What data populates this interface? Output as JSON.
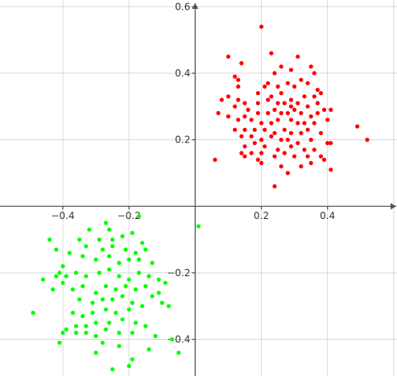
{
  "chart_data": {
    "type": "scatter",
    "title": "",
    "xlabel": "",
    "ylabel": "",
    "xlim": [
      -0.59,
      0.61
    ],
    "ylim": [
      -0.51,
      0.62
    ],
    "grid": true,
    "x_ticks": [
      -0.4,
      -0.2,
      0.2,
      0.4
    ],
    "x_tick_labels": [
      "−0.4",
      "−0.2",
      "0.2",
      "0.4"
    ],
    "y_ticks": [
      0.6,
      0.4,
      0.2,
      -0.2,
      -0.4
    ],
    "y_tick_labels": [
      "0.6",
      "0.4",
      "0.2",
      "−0.2",
      "−0.4"
    ],
    "series": [
      {
        "color": "#ff0000",
        "points": [
          [
            0.2,
            0.54
          ],
          [
            0.1,
            0.45
          ],
          [
            0.14,
            0.43
          ],
          [
            0.23,
            0.46
          ],
          [
            0.31,
            0.45
          ],
          [
            0.35,
            0.42
          ],
          [
            0.26,
            0.42
          ],
          [
            0.24,
            0.4
          ],
          [
            0.29,
            0.41
          ],
          [
            0.32,
            0.38
          ],
          [
            0.36,
            0.4
          ],
          [
            0.12,
            0.39
          ],
          [
            0.13,
            0.38
          ],
          [
            0.22,
            0.37
          ],
          [
            0.25,
            0.36
          ],
          [
            0.28,
            0.37
          ],
          [
            0.3,
            0.36
          ],
          [
            0.34,
            0.37
          ],
          [
            0.37,
            0.35
          ],
          [
            0.21,
            0.36
          ],
          [
            0.13,
            0.36
          ],
          [
            0.19,
            0.34
          ],
          [
            0.23,
            0.33
          ],
          [
            0.26,
            0.34
          ],
          [
            0.27,
            0.31
          ],
          [
            0.29,
            0.32
          ],
          [
            0.33,
            0.33
          ],
          [
            0.36,
            0.33
          ],
          [
            0.38,
            0.34
          ],
          [
            0.1,
            0.33
          ],
          [
            0.13,
            0.32
          ],
          [
            0.15,
            0.31
          ],
          [
            0.19,
            0.31
          ],
          [
            0.22,
            0.32
          ],
          [
            0.25,
            0.31
          ],
          [
            0.29,
            0.3
          ],
          [
            0.31,
            0.31
          ],
          [
            0.34,
            0.3
          ],
          [
            0.37,
            0.31
          ],
          [
            0.39,
            0.29
          ],
          [
            0.41,
            0.29
          ],
          [
            0.08,
            0.32
          ],
          [
            0.12,
            0.3
          ],
          [
            0.16,
            0.29
          ],
          [
            0.19,
            0.28
          ],
          [
            0.22,
            0.28
          ],
          [
            0.24,
            0.29
          ],
          [
            0.26,
            0.28
          ],
          [
            0.28,
            0.28
          ],
          [
            0.3,
            0.29
          ],
          [
            0.32,
            0.28
          ],
          [
            0.35,
            0.27
          ],
          [
            0.37,
            0.28
          ],
          [
            0.07,
            0.28
          ],
          [
            0.1,
            0.27
          ],
          [
            0.13,
            0.26
          ],
          [
            0.15,
            0.27
          ],
          [
            0.17,
            0.26
          ],
          [
            0.2,
            0.25
          ],
          [
            0.23,
            0.25
          ],
          [
            0.25,
            0.26
          ],
          [
            0.29,
            0.26
          ],
          [
            0.31,
            0.25
          ],
          [
            0.33,
            0.25
          ],
          [
            0.36,
            0.25
          ],
          [
            0.4,
            0.26
          ],
          [
            0.12,
            0.23
          ],
          [
            0.15,
            0.23
          ],
          [
            0.18,
            0.23
          ],
          [
            0.21,
            0.23
          ],
          [
            0.24,
            0.22
          ],
          [
            0.27,
            0.23
          ],
          [
            0.29,
            0.22
          ],
          [
            0.32,
            0.22
          ],
          [
            0.34,
            0.23
          ],
          [
            0.38,
            0.22
          ],
          [
            0.49,
            0.24
          ],
          [
            0.14,
            0.21
          ],
          [
            0.17,
            0.21
          ],
          [
            0.2,
            0.2
          ],
          [
            0.23,
            0.21
          ],
          [
            0.26,
            0.2
          ],
          [
            0.28,
            0.2
          ],
          [
            0.31,
            0.19
          ],
          [
            0.35,
            0.2
          ],
          [
            0.4,
            0.19
          ],
          [
            0.52,
            0.2
          ],
          [
            0.15,
            0.18
          ],
          [
            0.18,
            0.19
          ],
          [
            0.21,
            0.18
          ],
          [
            0.25,
            0.17
          ],
          [
            0.29,
            0.18
          ],
          [
            0.33,
            0.17
          ],
          [
            0.36,
            0.17
          ],
          [
            0.41,
            0.19
          ],
          [
            0.14,
            0.16
          ],
          [
            0.17,
            0.16
          ],
          [
            0.2,
            0.16
          ],
          [
            0.24,
            0.15
          ],
          [
            0.27,
            0.16
          ],
          [
            0.3,
            0.15
          ],
          [
            0.34,
            0.15
          ],
          [
            0.38,
            0.15
          ],
          [
            0.15,
            0.15
          ],
          [
            0.19,
            0.14
          ],
          [
            0.06,
            0.14
          ],
          [
            0.2,
            0.13
          ],
          [
            0.26,
            0.12
          ],
          [
            0.32,
            0.12
          ],
          [
            0.35,
            0.13
          ],
          [
            0.39,
            0.14
          ],
          [
            0.41,
            0.11
          ],
          [
            0.28,
            0.1
          ],
          [
            0.24,
            0.06
          ]
        ]
      },
      {
        "color": "#00ff00",
        "points": [
          [
            -0.17,
            -0.03
          ],
          [
            0.01,
            -0.06
          ],
          [
            -0.27,
            -0.05
          ],
          [
            -0.32,
            -0.07
          ],
          [
            -0.26,
            -0.07
          ],
          [
            -0.22,
            -0.09
          ],
          [
            -0.19,
            -0.08
          ],
          [
            -0.16,
            -0.11
          ],
          [
            -0.25,
            -0.1
          ],
          [
            -0.29,
            -0.1
          ],
          [
            -0.35,
            -0.1
          ],
          [
            -0.44,
            -0.1
          ],
          [
            -0.42,
            -0.13
          ],
          [
            -0.33,
            -0.12
          ],
          [
            -0.28,
            -0.13
          ],
          [
            -0.25,
            -0.12
          ],
          [
            -0.21,
            -0.13
          ],
          [
            -0.18,
            -0.14
          ],
          [
            -0.15,
            -0.13
          ],
          [
            -0.13,
            -0.17
          ],
          [
            -0.17,
            -0.16
          ],
          [
            -0.2,
            -0.16
          ],
          [
            -0.23,
            -0.17
          ],
          [
            -0.26,
            -0.15
          ],
          [
            -0.3,
            -0.16
          ],
          [
            -0.34,
            -0.15
          ],
          [
            -0.38,
            -0.14
          ],
          [
            -0.4,
            -0.18
          ],
          [
            -0.41,
            -0.2
          ],
          [
            -0.46,
            -0.22
          ],
          [
            -0.43,
            -0.25
          ],
          [
            -0.39,
            -0.21
          ],
          [
            -0.36,
            -0.2
          ],
          [
            -0.33,
            -0.21
          ],
          [
            -0.29,
            -0.2
          ],
          [
            -0.26,
            -0.19
          ],
          [
            -0.23,
            -0.21
          ],
          [
            -0.2,
            -0.22
          ],
          [
            -0.17,
            -0.2
          ],
          [
            -0.14,
            -0.21
          ],
          [
            -0.11,
            -0.22
          ],
          [
            -0.09,
            -0.23
          ],
          [
            -0.11,
            -0.26
          ],
          [
            -0.15,
            -0.24
          ],
          [
            -0.18,
            -0.25
          ],
          [
            -0.21,
            -0.24
          ],
          [
            -0.24,
            -0.25
          ],
          [
            -0.27,
            -0.24
          ],
          [
            -0.3,
            -0.26
          ],
          [
            -0.34,
            -0.24
          ],
          [
            -0.37,
            -0.25
          ],
          [
            -0.4,
            -0.23
          ],
          [
            -0.42,
            -0.21
          ],
          [
            -0.35,
            -0.28
          ],
          [
            -0.31,
            -0.29
          ],
          [
            -0.28,
            -0.28
          ],
          [
            -0.25,
            -0.28
          ],
          [
            -0.22,
            -0.27
          ],
          [
            -0.19,
            -0.29
          ],
          [
            -0.16,
            -0.3
          ],
          [
            -0.13,
            -0.27
          ],
          [
            -0.1,
            -0.29
          ],
          [
            -0.08,
            -0.3
          ],
          [
            -0.2,
            -0.31
          ],
          [
            -0.24,
            -0.32
          ],
          [
            -0.27,
            -0.31
          ],
          [
            -0.31,
            -0.32
          ],
          [
            -0.34,
            -0.33
          ],
          [
            -0.37,
            -0.32
          ],
          [
            -0.49,
            -0.32
          ],
          [
            -0.36,
            -0.36
          ],
          [
            -0.33,
            -0.36
          ],
          [
            -0.3,
            -0.35
          ],
          [
            -0.26,
            -0.35
          ],
          [
            -0.22,
            -0.34
          ],
          [
            -0.18,
            -0.35
          ],
          [
            -0.15,
            -0.36
          ],
          [
            -0.12,
            -0.39
          ],
          [
            -0.19,
            -0.38
          ],
          [
            -0.23,
            -0.38
          ],
          [
            -0.27,
            -0.37
          ],
          [
            -0.3,
            -0.39
          ],
          [
            -0.33,
            -0.38
          ],
          [
            -0.36,
            -0.38
          ],
          [
            -0.39,
            -0.37
          ],
          [
            -0.4,
            -0.38
          ],
          [
            -0.41,
            -0.41
          ],
          [
            -0.28,
            -0.41
          ],
          [
            -0.14,
            -0.43
          ],
          [
            -0.07,
            -0.4
          ],
          [
            -0.05,
            -0.44
          ],
          [
            -0.19,
            -0.46
          ],
          [
            -0.23,
            -0.42
          ],
          [
            -0.3,
            -0.44
          ],
          [
            -0.2,
            -0.48
          ],
          [
            -0.25,
            -0.49
          ]
        ]
      }
    ]
  }
}
